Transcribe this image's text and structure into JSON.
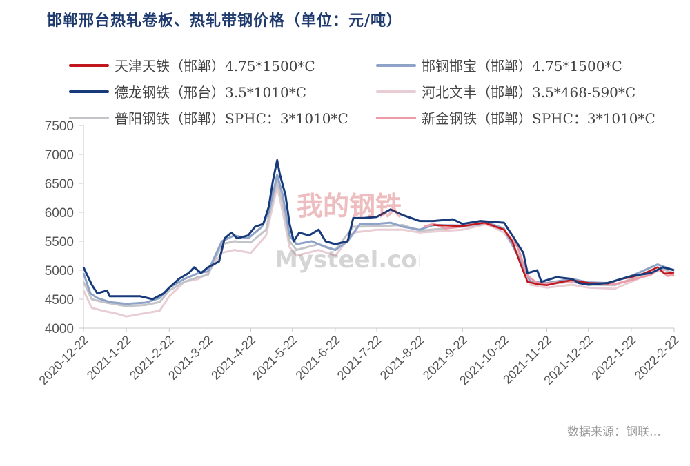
{
  "title": "邯郸邢台热轧卷板、热轧带钢价格（单位：元/吨）",
  "source": "数据来源：钢联…",
  "watermark": {
    "cn": "我的钢铁",
    "en": "Mysteel.com"
  },
  "chart_data": {
    "type": "line",
    "title": "邯郸邢台热轧卷板、热轧带钢价格（单位：元/吨）",
    "ylim": [
      4000,
      7500
    ],
    "yticks": [
      4000,
      4500,
      5000,
      5500,
      6000,
      6500,
      7000,
      7500
    ],
    "xrange": [
      "2020-12-22",
      "2022-02-22"
    ],
    "xticks": [
      "2020-12-22",
      "2021-1-22",
      "2021-2-22",
      "2021-3-22",
      "2021-4-22",
      "2021-5-22",
      "2021-6-22",
      "2021-7-22",
      "2021-8-22",
      "2021-9-22",
      "2021-10-22",
      "2021-11-22",
      "2021-12-22",
      "2022-1-22",
      "2022-2-22"
    ],
    "grid": false,
    "legend_position": "top",
    "series": [
      {
        "name": "天津天铁（邯郸）4.75*1500*C",
        "color": "#c0161d",
        "width": 2.5,
        "points": [
          [
            "2021-09-01",
            5780
          ],
          [
            "2021-09-22",
            5760
          ],
          [
            "2021-10-08",
            5820
          ],
          [
            "2021-10-22",
            5700
          ],
          [
            "2021-10-28",
            5500
          ],
          [
            "2021-11-03",
            5100
          ],
          [
            "2021-11-08",
            4800
          ],
          [
            "2021-11-15",
            4760
          ],
          [
            "2021-11-22",
            4740
          ],
          [
            "2021-12-01",
            4790
          ],
          [
            "2021-12-10",
            4830
          ],
          [
            "2021-12-22",
            4780
          ],
          [
            "2022-01-05",
            4770
          ],
          [
            "2022-01-15",
            4850
          ],
          [
            "2022-01-22",
            4880
          ],
          [
            "2022-02-01",
            4950
          ],
          [
            "2022-02-10",
            5050
          ],
          [
            "2022-02-15",
            4940
          ],
          [
            "2022-02-22",
            4960
          ]
        ]
      },
      {
        "name": "邯钢邯宝（邯郸）4.75*1500*C",
        "color": "#8ea3c7",
        "width": 3,
        "points": [
          [
            "2020-12-22",
            4950
          ],
          [
            "2020-12-27",
            4600
          ],
          [
            "2021-01-01",
            4520
          ],
          [
            "2021-01-10",
            4450
          ],
          [
            "2021-01-22",
            4420
          ],
          [
            "2021-02-05",
            4440
          ],
          [
            "2021-02-15",
            4520
          ],
          [
            "2021-02-22",
            4700
          ],
          [
            "2021-03-05",
            4850
          ],
          [
            "2021-03-15",
            4950
          ],
          [
            "2021-03-22",
            4980
          ],
          [
            "2021-04-01",
            5500
          ],
          [
            "2021-04-10",
            5600
          ],
          [
            "2021-04-20",
            5550
          ],
          [
            "2021-04-30",
            5750
          ],
          [
            "2021-05-05",
            6000
          ],
          [
            "2021-05-11",
            6650
          ],
          [
            "2021-05-15",
            6300
          ],
          [
            "2021-05-20",
            5600
          ],
          [
            "2021-05-25",
            5450
          ],
          [
            "2021-06-05",
            5500
          ],
          [
            "2021-06-15",
            5400
          ],
          [
            "2021-06-22",
            5350
          ],
          [
            "2021-07-01",
            5500
          ],
          [
            "2021-07-10",
            5800
          ],
          [
            "2021-07-22",
            5800
          ],
          [
            "2021-08-01",
            5820
          ],
          [
            "2021-08-10",
            5750
          ],
          [
            "2021-08-22",
            5700
          ],
          [
            "2021-09-01",
            5780
          ],
          [
            "2021-09-22",
            5770
          ],
          [
            "2021-10-10",
            5820
          ],
          [
            "2021-10-22",
            5720
          ],
          [
            "2021-11-03",
            5150
          ],
          [
            "2021-11-10",
            4800
          ],
          [
            "2021-11-22",
            4780
          ],
          [
            "2021-12-10",
            4850
          ],
          [
            "2021-12-22",
            4790
          ],
          [
            "2022-01-05",
            4780
          ],
          [
            "2022-01-22",
            4900
          ],
          [
            "2022-02-10",
            5100
          ],
          [
            "2022-02-22",
            5000
          ]
        ]
      },
      {
        "name": "德龙钢铁（邢台）3.5*1010*C",
        "color": "#173a7a",
        "width": 3,
        "points": [
          [
            "2020-12-22",
            5050
          ],
          [
            "2020-12-25",
            4900
          ],
          [
            "2020-12-28",
            4750
          ],
          [
            "2021-01-01",
            4600
          ],
          [
            "2021-01-08",
            4650
          ],
          [
            "2021-01-10",
            4550
          ],
          [
            "2021-01-22",
            4550
          ],
          [
            "2021-02-01",
            4550
          ],
          [
            "2021-02-10",
            4500
          ],
          [
            "2021-02-18",
            4600
          ],
          [
            "2021-02-22",
            4700
          ],
          [
            "2021-03-01",
            4850
          ],
          [
            "2021-03-08",
            4950
          ],
          [
            "2021-03-12",
            5050
          ],
          [
            "2021-03-17",
            4950
          ],
          [
            "2021-03-22",
            5050
          ],
          [
            "2021-03-30",
            5150
          ],
          [
            "2021-04-03",
            5550
          ],
          [
            "2021-04-08",
            5650
          ],
          [
            "2021-04-12",
            5550
          ],
          [
            "2021-04-20",
            5600
          ],
          [
            "2021-04-25",
            5750
          ],
          [
            "2021-05-01",
            5800
          ],
          [
            "2021-05-05",
            6100
          ],
          [
            "2021-05-08",
            6550
          ],
          [
            "2021-05-11",
            6900
          ],
          [
            "2021-05-13",
            6650
          ],
          [
            "2021-05-17",
            6300
          ],
          [
            "2021-05-20",
            5800
          ],
          [
            "2021-05-23",
            5500
          ],
          [
            "2021-05-27",
            5650
          ],
          [
            "2021-06-03",
            5600
          ],
          [
            "2021-06-10",
            5700
          ],
          [
            "2021-06-15",
            5500
          ],
          [
            "2021-06-22",
            5450
          ],
          [
            "2021-07-01",
            5500
          ],
          [
            "2021-07-05",
            5900
          ],
          [
            "2021-07-12",
            5900
          ],
          [
            "2021-07-22",
            5920
          ],
          [
            "2021-08-01",
            6050
          ],
          [
            "2021-08-10",
            5950
          ],
          [
            "2021-08-22",
            5850
          ],
          [
            "2021-09-01",
            5850
          ],
          [
            "2021-09-15",
            5880
          ],
          [
            "2021-09-22",
            5800
          ],
          [
            "2021-10-05",
            5850
          ],
          [
            "2021-10-22",
            5820
          ],
          [
            "2021-10-28",
            5600
          ],
          [
            "2021-11-05",
            5300
          ],
          [
            "2021-11-08",
            4950
          ],
          [
            "2021-11-15",
            5000
          ],
          [
            "2021-11-18",
            4800
          ],
          [
            "2021-11-29",
            4880
          ],
          [
            "2021-12-10",
            4850
          ],
          [
            "2021-12-15",
            4780
          ],
          [
            "2021-12-22",
            4750
          ],
          [
            "2022-01-05",
            4780
          ],
          [
            "2022-01-22",
            4900
          ],
          [
            "2022-02-05",
            4950
          ],
          [
            "2022-02-14",
            5050
          ],
          [
            "2022-02-22",
            5000
          ]
        ]
      },
      {
        "name": "河北文丰（邯郸）3.5*468-590*C",
        "color": "#e8cdd4",
        "width": 3,
        "points": [
          [
            "2020-12-22",
            4650
          ],
          [
            "2020-12-28",
            4350
          ],
          [
            "2021-01-05",
            4300
          ],
          [
            "2021-01-15",
            4250
          ],
          [
            "2021-01-22",
            4200
          ],
          [
            "2021-02-05",
            4260
          ],
          [
            "2021-02-15",
            4300
          ],
          [
            "2021-02-22",
            4550
          ],
          [
            "2021-03-05",
            4800
          ],
          [
            "2021-03-15",
            4850
          ],
          [
            "2021-03-22",
            4950
          ],
          [
            "2021-04-01",
            5300
          ],
          [
            "2021-04-10",
            5350
          ],
          [
            "2021-04-22",
            5300
          ],
          [
            "2021-05-03",
            5600
          ],
          [
            "2021-05-11",
            6450
          ],
          [
            "2021-05-15",
            6000
          ],
          [
            "2021-05-20",
            5400
          ],
          [
            "2021-05-25",
            5250
          ],
          [
            "2021-06-10",
            5350
          ],
          [
            "2021-06-22",
            5250
          ],
          [
            "2021-07-05",
            5650
          ],
          [
            "2021-07-22",
            5700
          ],
          [
            "2021-08-10",
            5700
          ],
          [
            "2021-08-22",
            5650
          ],
          [
            "2021-09-22",
            5700
          ],
          [
            "2021-10-10",
            5800
          ],
          [
            "2021-10-22",
            5650
          ],
          [
            "2021-11-01",
            5300
          ],
          [
            "2021-11-10",
            4750
          ],
          [
            "2021-11-22",
            4700
          ],
          [
            "2021-12-10",
            4750
          ],
          [
            "2021-12-22",
            4700
          ],
          [
            "2022-01-10",
            4680
          ],
          [
            "2022-01-22",
            4800
          ],
          [
            "2022-02-10",
            5000
          ],
          [
            "2022-02-22",
            4900
          ]
        ]
      },
      {
        "name": "普阳钢铁（邯郸）SPHC：3*1010*C",
        "color": "#c2c4c8",
        "width": 3,
        "points": [
          [
            "2020-12-22",
            4800
          ],
          [
            "2020-12-28",
            4500
          ],
          [
            "2021-01-05",
            4450
          ],
          [
            "2021-01-22",
            4380
          ],
          [
            "2021-02-05",
            4400
          ],
          [
            "2021-02-15",
            4450
          ],
          [
            "2021-02-22",
            4650
          ],
          [
            "2021-03-05",
            4800
          ],
          [
            "2021-03-15",
            4880
          ],
          [
            "2021-03-22",
            4920
          ],
          [
            "2021-04-01",
            5450
          ],
          [
            "2021-04-10",
            5500
          ],
          [
            "2021-04-22",
            5480
          ],
          [
            "2021-05-03",
            5700
          ],
          [
            "2021-05-11",
            6550
          ],
          [
            "2021-05-15",
            6150
          ],
          [
            "2021-05-20",
            5500
          ],
          [
            "2021-05-25",
            5350
          ],
          [
            "2021-06-10",
            5450
          ],
          [
            "2021-06-22",
            5350
          ],
          [
            "2021-07-05",
            5750
          ],
          [
            "2021-07-22",
            5760
          ],
          [
            "2021-08-10",
            5780
          ],
          [
            "2021-08-22",
            5680
          ],
          [
            "2021-09-22",
            5750
          ],
          [
            "2021-10-10",
            5800
          ],
          [
            "2021-10-22",
            5700
          ],
          [
            "2021-11-03",
            5200
          ],
          [
            "2021-11-10",
            4800
          ],
          [
            "2021-11-22",
            4760
          ],
          [
            "2021-12-10",
            4800
          ],
          [
            "2021-12-22",
            4750
          ],
          [
            "2022-01-10",
            4740
          ],
          [
            "2022-01-22",
            4850
          ],
          [
            "2022-02-10",
            5050
          ],
          [
            "2022-02-22",
            4950
          ]
        ]
      },
      {
        "name": "新金钢铁（邯郸）SPHC：3*1010*C",
        "color": "#ec9aa6",
        "width": 3,
        "points": [
          [
            "2021-08-25",
            5750
          ],
          [
            "2021-09-01",
            5800
          ],
          [
            "2021-09-10",
            5720
          ],
          [
            "2021-09-22",
            5760
          ],
          [
            "2021-10-05",
            5820
          ],
          [
            "2021-10-22",
            5700
          ],
          [
            "2021-11-01",
            5400
          ],
          [
            "2021-11-08",
            4900
          ],
          [
            "2021-11-15",
            4780
          ],
          [
            "2021-11-22",
            4770
          ],
          [
            "2021-12-10",
            4810
          ],
          [
            "2021-12-22",
            4760
          ],
          [
            "2022-01-10",
            4760
          ],
          [
            "2022-01-22",
            4830
          ],
          [
            "2022-02-05",
            4920
          ],
          [
            "2022-02-12",
            5030
          ],
          [
            "2022-02-17",
            4900
          ],
          [
            "2022-02-22",
            4920
          ]
        ]
      }
    ]
  }
}
